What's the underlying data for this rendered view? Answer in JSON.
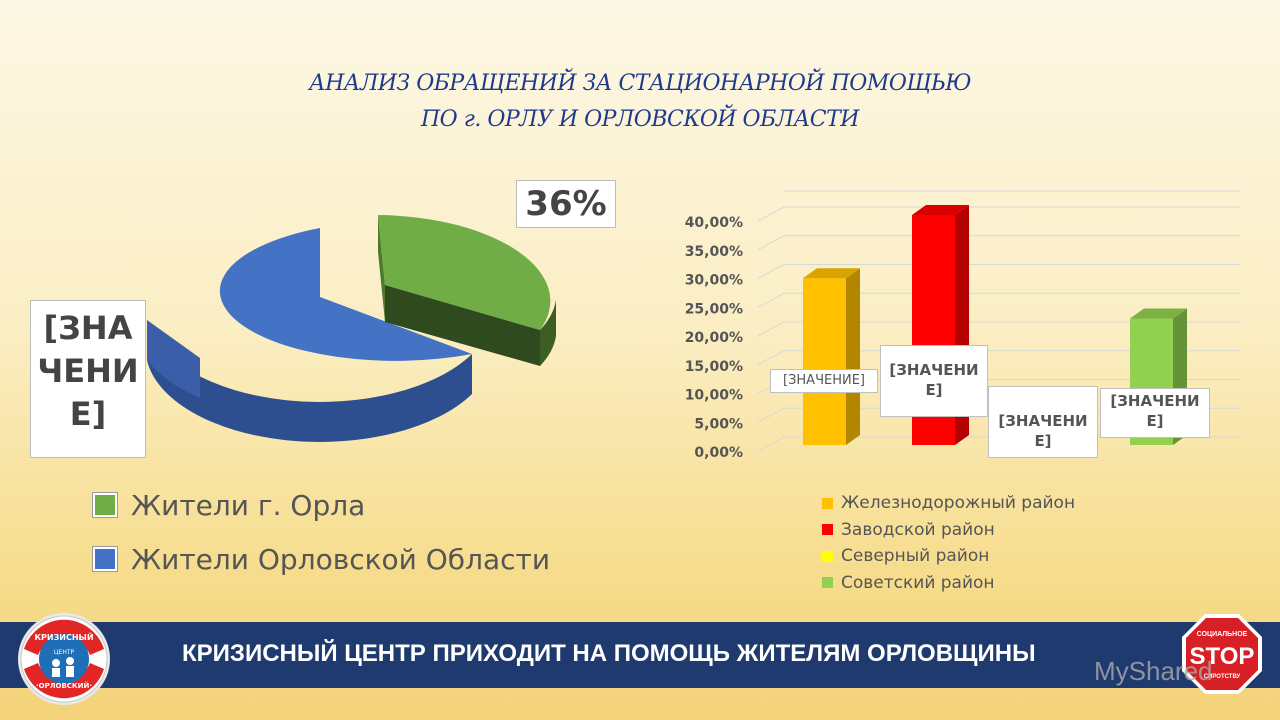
{
  "title": {
    "line1": "АНАЛИЗ ОБРАЩЕНИЙ ЗА СТАЦИОНАРНОЙ ПОМОЩЬЮ",
    "line2": "ПО г. ОРЛУ И ОРЛОВСКОЙ ОБЛАСТИ"
  },
  "chart_data": [
    {
      "type": "pie",
      "slices": [
        {
          "name": "Жители г. Орла",
          "value": 36,
          "label": "36%",
          "color": "#70ad47"
        },
        {
          "name": "Жители Орловской Области",
          "value": 64,
          "label": "[ЗНАЧЕНИЕ]",
          "color": "#4472c4"
        }
      ],
      "legend": [
        "Жители г. Орла",
        "Жители Орловской Области"
      ],
      "legend_placement": "bottom"
    },
    {
      "type": "bar",
      "categories": [
        "Железнодорожный район",
        "Заводской район",
        "Северный район",
        "Советский район"
      ],
      "values": [
        0.29,
        0.4,
        0.0,
        0.22
      ],
      "colors": [
        "#ffc000",
        "#ff0000",
        "#ffff00",
        "#92d050"
      ],
      "data_labels": [
        "[ЗНАЧЕНИЕ]",
        "[ЗНАЧЕНИЕ]",
        "[ЗНАЧЕНИЕ]",
        "[ЗНАЧЕНИЕ]"
      ],
      "yticks": [
        "0,00%",
        "5,00%",
        "10,00%",
        "15,00%",
        "20,00%",
        "25,00%",
        "30,00%",
        "35,00%",
        "40,00%"
      ],
      "ylim": [
        0,
        0.4
      ],
      "grid": true,
      "legend_placement": "bottom"
    }
  ],
  "banner": {
    "text": "КРИЗИСНЫЙ ЦЕНТР ПРИХОДИТ НА ПОМОЩЬ ЖИТЕЛЯМ ОРЛОВЩИНЫ",
    "color": "#1e3a6f"
  },
  "logo": {
    "top": "КРИЗИСНЫЙ",
    "middle": "ЦЕНТР",
    "bottom": "·ОРЛОВСКИЙ·"
  },
  "stop_sign": {
    "top": "СОЦИАЛЬНОЕ",
    "main": "STOP",
    "bottom": "СИРОТСТВУ"
  },
  "watermark": "MyShared"
}
